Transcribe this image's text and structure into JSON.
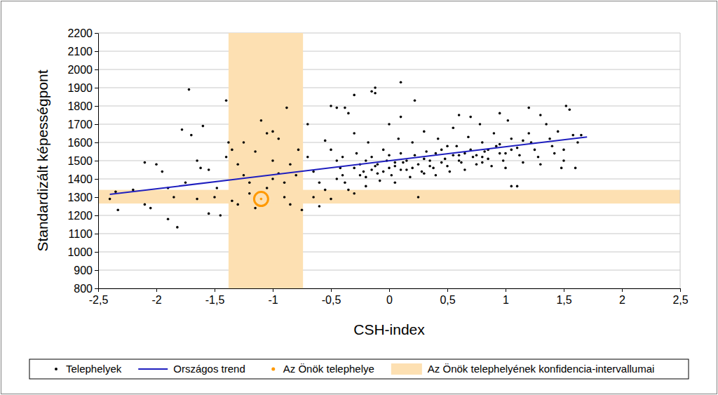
{
  "chart_data": {
    "type": "scatter",
    "x_label": "CSH-index",
    "y_label": "Standardizált képességpont",
    "xlim": [
      -2.5,
      2.5
    ],
    "xticks": [
      {
        "value": -2.5,
        "label": "-2,5"
      },
      -2,
      {
        "value": -1.5,
        "label": "-1,5"
      },
      -1,
      {
        "value": -0.5,
        "label": "-0,5"
      },
      0,
      {
        "value": 0.5,
        "label": "0,5"
      },
      1,
      {
        "value": 1.5,
        "label": "1,5"
      },
      2,
      {
        "value": 2.5,
        "label": "2,5"
      }
    ],
    "ylim": [
      800,
      2200
    ],
    "yticks": [
      800,
      900,
      1000,
      1100,
      1200,
      1300,
      1400,
      1500,
      1600,
      1700,
      1800,
      1900,
      2000,
      2100,
      2200
    ],
    "grid": true,
    "legend": "bottom",
    "series": [
      {
        "name": "Telephelyek",
        "type": "scatter",
        "marker": "dot",
        "color": "#000000",
        "x": [
          -1.72,
          -1.4,
          -0.88,
          -1.9,
          -1.82,
          -2.35,
          -2.33,
          -2.4,
          -2.1,
          -2.0,
          -1.95,
          -2.05,
          -2.1,
          -1.9,
          -1.78,
          -1.7,
          -1.6,
          -1.65,
          -1.62,
          -1.55,
          -1.75,
          -1.5,
          -1.55,
          -1.45,
          -1.48,
          -1.38,
          -1.35,
          -1.3,
          -1.25,
          -1.2,
          -1.2,
          -1.3,
          -1.15,
          -1.1,
          -1.05,
          -1.0,
          -0.95,
          -1.0,
          -0.95,
          -0.9,
          -0.9,
          -0.85,
          -0.8,
          -0.78,
          -0.75,
          -0.7,
          -0.65,
          -0.6,
          -0.55,
          -0.5,
          -0.5,
          -0.45,
          -0.38,
          -0.3,
          -0.3,
          -0.15,
          -0.12,
          -0.12,
          0.1,
          0.22,
          -0.55,
          -0.5,
          -0.45,
          -0.42,
          -0.4,
          -0.38,
          -0.35,
          -0.3,
          -0.28,
          -0.25,
          -0.22,
          -0.2,
          -0.18,
          -0.15,
          -0.12,
          -0.1,
          -0.08,
          -0.05,
          -0.02,
          0.0,
          0.02,
          0.05,
          0.08,
          0.1,
          0.12,
          0.15,
          0.18,
          0.2,
          0.22,
          0.25,
          0.28,
          0.3,
          0.32,
          0.35,
          0.38,
          0.4,
          0.42,
          0.45,
          0.48,
          0.5,
          0.52,
          0.55,
          0.58,
          0.6,
          0.62,
          0.65,
          0.68,
          0.7,
          0.72,
          0.75,
          0.78,
          0.8,
          0.82,
          0.85,
          0.88,
          0.9,
          0.92,
          0.95,
          0.98,
          1.0,
          1.02,
          1.05,
          1.05,
          1.1,
          1.1,
          1.12,
          1.15,
          1.2,
          1.22,
          1.25,
          1.28,
          1.3,
          1.35,
          1.38,
          1.4,
          1.42,
          1.45,
          1.48,
          1.5,
          1.52,
          1.55,
          1.58,
          1.6,
          1.62,
          1.65,
          1.2,
          0.95,
          0.8,
          0.7,
          0.0,
          0.1,
          0.25,
          -0.2,
          -0.6,
          -0.65,
          -0.35,
          -0.7,
          0.6,
          1.3,
          1.5,
          -0.4,
          -0.3,
          -0.2,
          -0.1,
          0.0,
          0.05,
          0.15,
          0.2,
          0.3,
          0.35,
          0.45,
          0.55,
          0.65,
          0.75,
          0.85,
          0.95,
          1.05,
          1.15,
          0.4,
          0.5,
          -0.45,
          -0.25,
          -0.05,
          0.1,
          0.3,
          0.6,
          0.8,
          1.0,
          -0.15,
          0.05,
          -1.15,
          -1.25,
          -1.4,
          -1.0,
          -0.85,
          -1.05,
          -1.35,
          -2.2,
          -1.85,
          -1.65
        ],
        "values": [
          1890,
          1830,
          1790,
          1350,
          1135,
          1330,
          1230,
          1290,
          1490,
          1480,
          1440,
          1240,
          1260,
          1180,
          1670,
          1640,
          1690,
          1500,
          1460,
          1450,
          1380,
          1300,
          1210,
          1200,
          1350,
          1600,
          1560,
          1480,
          1420,
          1380,
          1320,
          1260,
          1240,
          1720,
          1650,
          1660,
          1620,
          1500,
          1430,
          1380,
          1300,
          1260,
          1420,
          1560,
          1230,
          1520,
          1440,
          1380,
          1340,
          1290,
          1800,
          1790,
          1790,
          1650,
          1860,
          1880,
          1870,
          1900,
          1930,
          1830,
          1610,
          1560,
          1500,
          1460,
          1420,
          1380,
          1340,
          1320,
          1540,
          1480,
          1440,
          1410,
          1600,
          1520,
          1470,
          1430,
          1390,
          1560,
          1500,
          1460,
          1420,
          1380,
          1620,
          1540,
          1490,
          1450,
          1410,
          1600,
          1530,
          1480,
          1440,
          1660,
          1550,
          1500,
          1460,
          1420,
          1620,
          1560,
          1510,
          1470,
          1440,
          1680,
          1580,
          1530,
          1490,
          1450,
          1630,
          1560,
          1520,
          1480,
          1700,
          1600,
          1550,
          1510,
          1470,
          1650,
          1580,
          1540,
          1500,
          1460,
          1720,
          1620,
          1360,
          1360,
          1570,
          1530,
          1490,
          1650,
          1600,
          1560,
          1520,
          1480,
          1700,
          1620,
          1580,
          1540,
          1660,
          1460,
          1500,
          1800,
          1780,
          1640,
          1460,
          1600,
          1640,
          1790,
          1760,
          1490,
          1740,
          1700,
          1740,
          1300,
          1360,
          1250,
          1300,
          1760,
          1700,
          1750,
          1750,
          1560,
          1520,
          1460,
          1500,
          1480,
          1530,
          1470,
          1500,
          1460,
          1510,
          1470,
          1490,
          1530,
          1540,
          1530,
          1560,
          1590,
          1560,
          1610,
          1540,
          1580,
          1400,
          1420,
          1440,
          1450,
          1430,
          1500,
          1520,
          1540,
          1450,
          1490,
          1550,
          1600,
          1520,
          1400,
          1480,
          1350,
          1280,
          1340,
          1300,
          1290
        ]
      },
      {
        "name": "Országos trend",
        "type": "line",
        "line_style": "solid",
        "color": "#1f1fbf",
        "x": [
          -2.4,
          1.7
        ],
        "values": [
          1315,
          1630
        ]
      },
      {
        "name": "Az Önök telephelye",
        "type": "scatter",
        "marker": "ring",
        "color": "#ff9900",
        "x": [
          -1.1
        ],
        "values": [
          1290
        ]
      }
    ],
    "confidence_interval": {
      "name": "Az Önök telephelyének konfidencia-intervallumai",
      "color": "#fde0b2",
      "x": [
        -1.38,
        -0.74
      ],
      "y": [
        1265,
        1340
      ]
    }
  }
}
